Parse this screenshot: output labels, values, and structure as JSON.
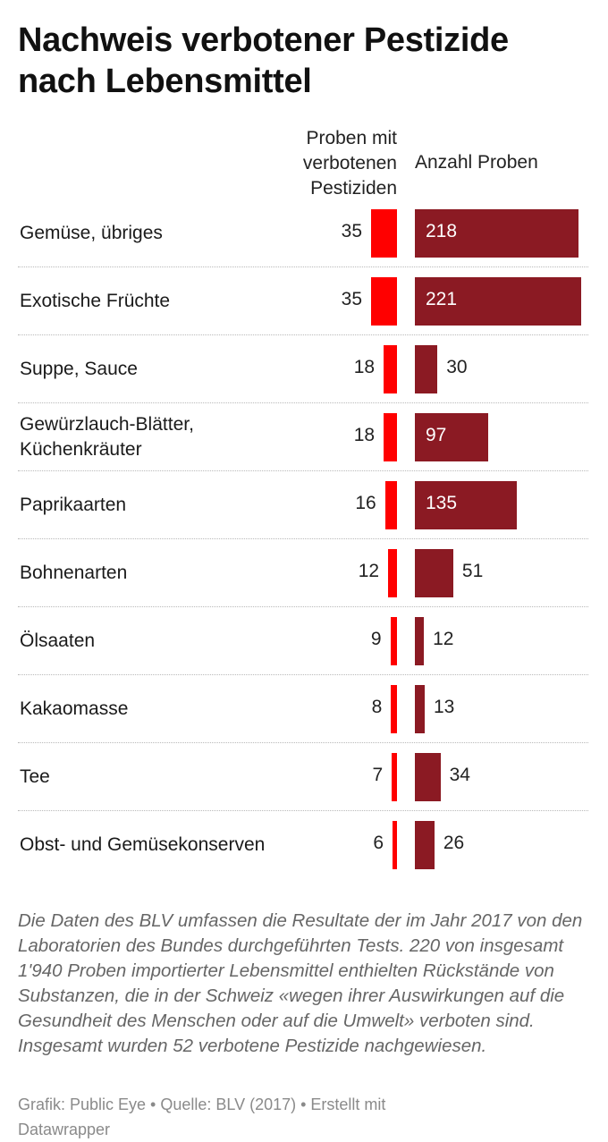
{
  "title": "Nachweis verbotener Pestizide nach Lebensmittel",
  "column_headers": {
    "left": "Proben mit verbotenen Pestiziden",
    "right": "Anzahl Proben"
  },
  "colors": {
    "left_bar": "#ff0000",
    "right_bar": "#8b1a23"
  },
  "chart_data": {
    "type": "bar",
    "title": "Nachweis verbotener Pestizide nach Lebensmittel",
    "categories": [
      "Gemüse, übriges",
      "Exotische Früchte",
      "Suppe, Sauce",
      "Gewürzlauch-Blätter, Küchenkräuter",
      "Paprikaarten",
      "Bohnenarten",
      "Ölsaaten",
      "Kakaomasse",
      "Tee",
      "Obst- und Gemüsekonserven"
    ],
    "series": [
      {
        "name": "Proben mit verbotenen Pestiziden",
        "values": [
          35,
          35,
          18,
          18,
          16,
          12,
          9,
          8,
          7,
          6
        ]
      },
      {
        "name": "Anzahl Proben",
        "values": [
          218,
          221,
          30,
          97,
          135,
          51,
          12,
          13,
          34,
          26
        ]
      }
    ]
  },
  "note": "Die Daten des BLV umfassen die Resultate der im Jahr 2017 von den Laboratorien des Bundes durchgeführten Tests. 220 von insgesamt 1'940 Proben importierter Lebensmittel enthielten Rückstände von Substanzen, die in der Schweiz «wegen ihrer Auswirkungen auf die Gesundheit des Menschen oder auf die Umwelt» verboten sind. Insgesamt wurden 52 verbotene Pestizide nachgewiesen.",
  "footer": "Grafik: Public Eye • Quelle: BLV (2017) • Erstellt mit Datawrapper"
}
